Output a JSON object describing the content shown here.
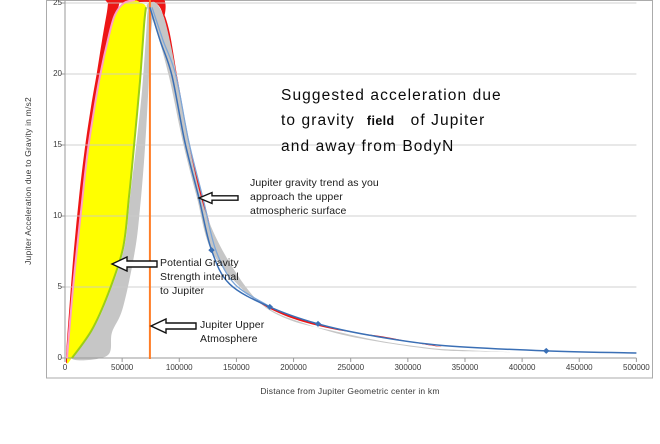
{
  "y_axis": {
    "title": "Jupiter Acceleration due to Gravity in m/s2",
    "ticks": [
      "0",
      "5",
      "10",
      "15",
      "20",
      "25"
    ],
    "tick_values": [
      0,
      5,
      10,
      15,
      20,
      25
    ]
  },
  "x_axis": {
    "title": "Distance from Jupiter Geometric center in km",
    "ticks": [
      "0",
      "50000",
      "100000",
      "150000",
      "200000",
      "250000",
      "300000",
      "350000",
      "400000",
      "450000",
      "500000"
    ],
    "tick_values": [
      0,
      50000,
      100000,
      150000,
      200000,
      250000,
      300000,
      350000,
      400000,
      450000,
      500000
    ]
  },
  "title": {
    "line1": "Suggested acceleration due",
    "line2_pre": "to gravity",
    "line2_bold": "field",
    "line2_post": "of Jupiter",
    "line3": "and away from BodyN"
  },
  "annotations": [
    {
      "lines": [
        "Jupiter gravity trend as you",
        "approach the upper",
        "atmospheric surface"
      ],
      "arrow": {
        "tip": [
          199,
          198
        ],
        "len": 39,
        "head_w": 13,
        "head_h": 5.5,
        "shaft": 2.2
      }
    },
    {
      "lines": [
        "Potential Gravity",
        "Strength internal",
        "to Jupiter"
      ],
      "arrow": {
        "tip": [
          112,
          264
        ],
        "len": 45,
        "head_w": 15,
        "head_h": 7,
        "shaft": 3
      }
    },
    {
      "lines": [
        "Jupiter Upper",
        "Atmosphere"
      ],
      "arrow": {
        "tip": [
          151,
          326
        ],
        "len": 45,
        "head_w": 15,
        "head_h": 7,
        "shaft": 3
      }
    }
  ],
  "colors": {
    "red": "#ED1515",
    "yellow": "#FFFF00",
    "gray_band": "#C6C6C6",
    "pink_edge": "#FF9DC9",
    "green_edge": "#9CCE15",
    "orange_line": "#FF7D26",
    "blue_line": "#3A6FB5",
    "blue_line_light": "#7CA6D8",
    "gridline": "#C9C9C9",
    "axis": "#9A9A9A",
    "border": "#ABABAB"
  },
  "chart_data": {
    "type": "combo-area-line",
    "title": "Suggested acceleration due to gravity field of Jupiter and away from BodyN",
    "xlabel": "Distance from Jupiter Geometric center in km",
    "ylabel": "Jupiter Acceleration due to Gravity in m/s2",
    "xlim": [
      0,
      500000
    ],
    "ylim": [
      0,
      25
    ],
    "grid": "horizontal",
    "legend": "none",
    "jupiter_surface_km": 74300,
    "series": [
      {
        "name": "suggested-envelope-left",
        "kind": "area",
        "color": "#ED1515",
        "points": [
          [
            900,
            0
          ],
          [
            4400,
            4.15
          ],
          [
            7900,
            7.7
          ],
          [
            12250,
            11.3
          ],
          [
            17500,
            14.85
          ],
          [
            22750,
            17.7
          ],
          [
            28000,
            20.15
          ],
          [
            32350,
            22.35
          ],
          [
            36700,
            24.35
          ],
          [
            39350,
            25.5
          ],
          [
            49000,
            25.5
          ],
          [
            47200,
            24.85
          ],
          [
            43700,
            23.8
          ],
          [
            40200,
            22.35
          ],
          [
            35850,
            20.0
          ],
          [
            32350,
            18.05
          ],
          [
            28000,
            15.9
          ],
          [
            25350,
            14.0
          ],
          [
            21850,
            10.9
          ],
          [
            17500,
            7.85
          ],
          [
            13100,
            4.5
          ],
          [
            8750,
            2.0
          ],
          [
            3500,
            0.05
          ]
        ]
      },
      {
        "name": "suggested-envelope-top",
        "kind": "area",
        "color": "#ED1515",
        "points": [
          [
            37600,
            25.0
          ],
          [
            39350,
            25.55
          ],
          [
            83100,
            25.55
          ],
          [
            86550,
            24.0
          ],
          [
            78700,
            25.0
          ],
          [
            48100,
            25.0
          ]
        ]
      },
      {
        "name": "suggested-envelope-right",
        "kind": "area",
        "color": "#ED1515",
        "points": [
          [
            76050,
            25.5
          ],
          [
            81300,
            25.2
          ],
          [
            88300,
            23.4
          ],
          [
            96150,
            19.85
          ],
          [
            106650,
            15.2
          ],
          [
            118900,
            11.3
          ],
          [
            132000,
            7.7
          ],
          [
            155600,
            4.85
          ],
          [
            187950,
            3.3
          ],
          [
            231650,
            2.2
          ],
          [
            284100,
            1.35
          ],
          [
            328700,
            0.8
          ],
          [
            314700,
            0.95
          ],
          [
            279750,
            1.5
          ],
          [
            233400,
            2.05
          ],
          [
            190600,
            3.05
          ],
          [
            158250,
            4.65
          ],
          [
            134650,
            7.55
          ],
          [
            121550,
            11.05
          ],
          [
            109300,
            15.0
          ],
          [
            98800,
            19.55
          ],
          [
            90950,
            23.15
          ],
          [
            83950,
            24.7
          ],
          [
            77850,
            25.15
          ]
        ]
      },
      {
        "name": "potential-band-left",
        "kind": "area",
        "color": "#C6C6C6",
        "points": [
          [
            5250,
            0
          ],
          [
            24500,
            2.0
          ],
          [
            38500,
            4.5
          ],
          [
            51600,
            7.7
          ],
          [
            56850,
            11.3
          ],
          [
            62100,
            14.85
          ],
          [
            67350,
            18.8
          ],
          [
            70850,
            22.7
          ],
          [
            72600,
            24.55
          ],
          [
            76950,
            24.55
          ],
          [
            75200,
            22.7
          ],
          [
            73450,
            19.85
          ],
          [
            71700,
            17.0
          ],
          [
            69100,
            13.8
          ],
          [
            65600,
            10.55
          ],
          [
            61200,
            7.55
          ],
          [
            50700,
            3.55
          ],
          [
            41100,
            1.8
          ],
          [
            36700,
            0.15
          ]
        ]
      },
      {
        "name": "potential-band-right",
        "kind": "area",
        "color": "#C6C6C6",
        "points": [
          [
            71700,
            24.7
          ],
          [
            78700,
            23.4
          ],
          [
            90950,
            19.85
          ],
          [
            103150,
            15.2
          ],
          [
            115400,
            11.3
          ],
          [
            127650,
            7.65
          ],
          [
            153850,
            4.95
          ],
          [
            181000,
            3.35
          ],
          [
            207250,
            2.5
          ],
          [
            242200,
            1.65
          ],
          [
            285900,
            1.0
          ],
          [
            329550,
            0.55
          ],
          [
            370000,
            0.45
          ],
          [
            389000,
            0.42
          ],
          [
            352000,
            0.55
          ],
          [
            320000,
            0.7
          ],
          [
            276250,
            1.2
          ],
          [
            232500,
            1.95
          ],
          [
            197600,
            2.65
          ],
          [
            169600,
            3.95
          ],
          [
            143400,
            6.8
          ],
          [
            124150,
            10.0
          ],
          [
            111900,
            13.7
          ],
          [
            102300,
            17.85
          ],
          [
            93550,
            21.65
          ],
          [
            86550,
            24.0
          ],
          [
            79550,
            25.0
          ],
          [
            74300,
            25.0
          ]
        ]
      },
      {
        "name": "internal-gravity-range",
        "kind": "area",
        "color": "#FFFF00",
        "points": [
          [
            1750,
            0
          ],
          [
            6100,
            4.15
          ],
          [
            10500,
            7.7
          ],
          [
            14850,
            10.95
          ],
          [
            19250,
            14.15
          ],
          [
            24500,
            17.0
          ],
          [
            30600,
            19.85
          ],
          [
            38450,
            22.7
          ],
          [
            43700,
            24.15
          ],
          [
            51600,
            25.0
          ],
          [
            61200,
            25.2
          ],
          [
            66450,
            25.0
          ],
          [
            70850,
            24.7
          ],
          [
            69100,
            23.4
          ],
          [
            65600,
            19.5
          ],
          [
            60300,
            14.85
          ],
          [
            55950,
            11.3
          ],
          [
            50700,
            7.7
          ],
          [
            37600,
            4.5
          ],
          [
            23600,
            2.0
          ],
          [
            6100,
            0
          ]
        ]
      },
      {
        "name": "internal-lower-bound",
        "kind": "line",
        "color": "#FF9DC9",
        "width": 2,
        "points": [
          [
            1750,
            0
          ],
          [
            6100,
            4.15
          ],
          [
            10500,
            7.7
          ],
          [
            14850,
            10.95
          ],
          [
            19250,
            14.15
          ],
          [
            24500,
            17.0
          ],
          [
            30600,
            19.85
          ],
          [
            38450,
            22.7
          ],
          [
            43700,
            24.15
          ],
          [
            51600,
            25.0
          ],
          [
            61200,
            25.2
          ]
        ]
      },
      {
        "name": "internal-upper-bound",
        "kind": "line",
        "color": "#9CCE15",
        "width": 2,
        "points": [
          [
            6100,
            0
          ],
          [
            23600,
            2.0
          ],
          [
            37600,
            4.5
          ],
          [
            50700,
            7.7
          ],
          [
            55950,
            11.3
          ],
          [
            60300,
            14.85
          ],
          [
            65600,
            19.5
          ],
          [
            69100,
            23.4
          ],
          [
            70850,
            24.7
          ]
        ]
      },
      {
        "name": "jupiter-upper-atmosphere",
        "kind": "vline",
        "color": "#FF7D26",
        "width": 2,
        "x": 74300
      },
      {
        "name": "gravity-trend-outer",
        "kind": "line",
        "color": "#7CA6D8",
        "width": 1.3,
        "points": [
          [
            76100,
            24.7
          ],
          [
            85700,
            22.4
          ],
          [
            97000,
            19.9
          ],
          [
            108400,
            15.2
          ],
          [
            120600,
            11.3
          ],
          [
            132000,
            7.6
          ],
          [
            148600,
            5.2
          ],
          [
            177500,
            3.7
          ]
        ]
      },
      {
        "name": "gravity-trend",
        "kind": "line",
        "color": "#3A6FB5",
        "width": 1.5,
        "points": [
          [
            74300,
            24.7
          ],
          [
            83000,
            22.4
          ],
          [
            93500,
            19.9
          ],
          [
            104900,
            15.2
          ],
          [
            117100,
            11.3
          ],
          [
            128200,
            7.6
          ],
          [
            144200,
            5.2
          ],
          [
            179200,
            3.6
          ],
          [
            221400,
            2.4
          ],
          [
            266600,
            1.6
          ],
          [
            327800,
            0.9
          ],
          [
            421100,
            0.5
          ],
          [
            500000,
            0.35
          ]
        ],
        "markers": [
          [
            128200,
            7.6
          ],
          [
            179200,
            3.6
          ],
          [
            221400,
            2.4
          ],
          [
            421100,
            0.5
          ]
        ]
      }
    ]
  }
}
